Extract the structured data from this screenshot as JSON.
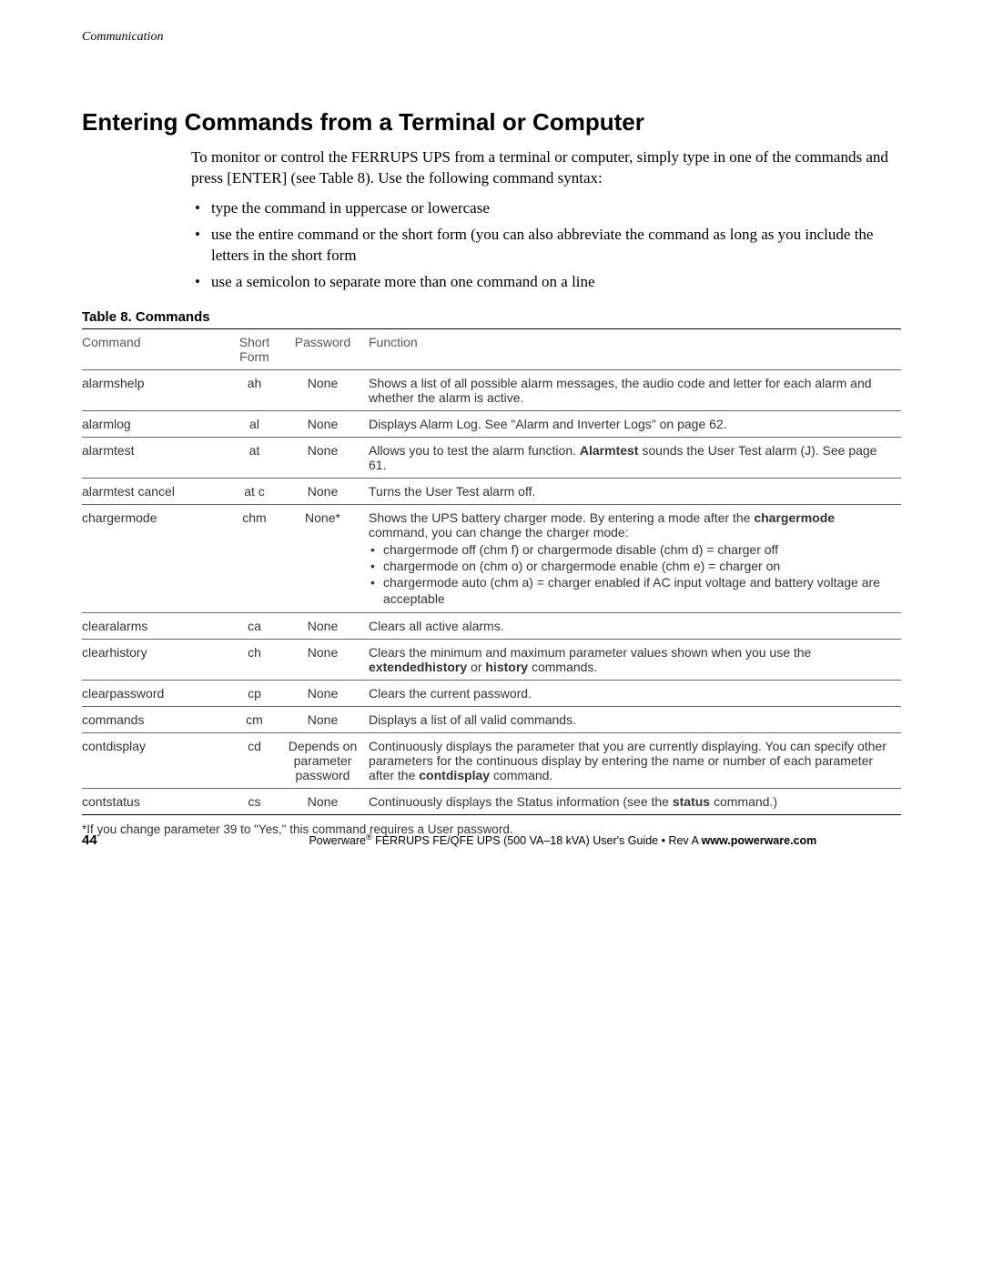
{
  "header": {
    "running": "Communication"
  },
  "title": "Entering Commands from a Terminal or Computer",
  "intro": "To monitor or control the FERRUPS UPS from a terminal or computer, simply type in one of the commands and press [ENTER] (see Table 8). Use the following command syntax:",
  "bullets": [
    "type the command in uppercase or lowercase",
    "use the entire command or the short form (you can also abbreviate the command as long as you include the letters in the short form",
    "use a semicolon to separate more than one command on a line"
  ],
  "table": {
    "caption": "Table 8. Commands",
    "columns": [
      "Command",
      "Short Form",
      "Password",
      "Function"
    ],
    "rows": [
      {
        "command": "alarmshelp",
        "short": "ah",
        "password": "None",
        "function_plain": "Shows a list of all possible alarm messages, the audio code and letter for each alarm and whether the alarm is active."
      },
      {
        "command": "alarmlog",
        "short": "al",
        "password": "None",
        "function_plain": "Displays Alarm Log. See \"Alarm and Inverter Logs\" on page 62."
      },
      {
        "command": "alarmtest",
        "short": "at",
        "password": "None",
        "function_html": "Allows you to test the alarm function. <span class=\"bold\">Alarmtest</span> sounds the User Test alarm (J). See page 61."
      },
      {
        "command": "alarmtest cancel",
        "short": "at c",
        "password": "None",
        "function_plain": "Turns the User Test alarm off."
      },
      {
        "command": "chargermode",
        "short": "chm",
        "password": "None*",
        "function_html": "Shows the UPS battery charger mode. By entering a mode after the <span class=\"bold\">chargermode</span> command, you can change the charger mode:",
        "sublist": [
          "chargermode off (chm f) or chargermode disable (chm d) = charger off",
          "chargermode on (chm o) or chargermode enable (chm e) = charger on",
          "chargermode auto (chm a) = charger enabled if AC input voltage and battery voltage are acceptable"
        ]
      },
      {
        "command": "clearalarms",
        "short": "ca",
        "password": "None",
        "function_plain": "Clears all active alarms."
      },
      {
        "command": "clearhistory",
        "short": "ch",
        "password": "None",
        "function_html": "Clears the minimum and maximum parameter values shown when you use the <span class=\"bold\">extendedhistory</span> or <span class=\"bold\">history</span> commands."
      },
      {
        "command": "clearpassword",
        "short": "cp",
        "password": "None",
        "function_plain": "Clears the current password."
      },
      {
        "command": "commands",
        "short": "cm",
        "password": "None",
        "function_plain": "Displays a list of all valid commands."
      },
      {
        "command": "contdisplay",
        "short": "cd",
        "password": "Depends on parameter password",
        "function_html": "Continuously displays the parameter that you are currently displaying. You can specify other parameters for the continuous display by entering the name or number of each parameter after the <span class=\"bold\">contdisplay</span> command."
      },
      {
        "command": "contstatus",
        "short": "cs",
        "password": "None",
        "function_html": "Continuously displays the Status information (see the <span class=\"bold\">status</span> command.)"
      }
    ]
  },
  "footnote": "*If you change parameter 39 to \"Yes,\" this command requires a User password.",
  "footer": {
    "page": "44",
    "text_pre": "Powerware",
    "reg": "®",
    "text_mid": " FERRUPS FE/QFE UPS (500 VA–18 kVA) User's Guide  •  Rev A ",
    "url": "www.powerware.com"
  }
}
